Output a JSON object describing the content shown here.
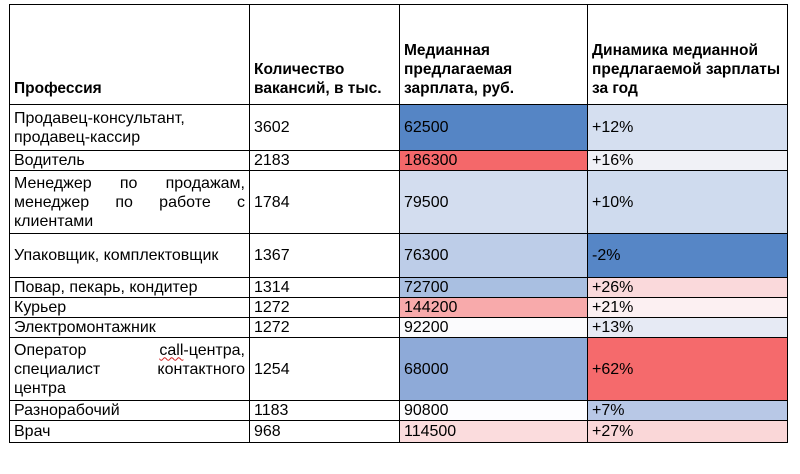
{
  "table": {
    "headers": {
      "profession": "Профессия",
      "vacancies": "Количество вакансий, в тыс.",
      "salary": "Медианная предлагаемая зарплата, руб.",
      "dynamics": "Динамика медианной предлагаемой зарплаты за год"
    },
    "rows": [
      {
        "profession": "Продавец-консультант, продавец-кассир",
        "vacancies": "3602",
        "salary": "62500",
        "dynamics": "+12%",
        "salary_color": "#5585c5",
        "dynamics_color": "#d5dff0"
      },
      {
        "profession": "Водитель",
        "vacancies": "2183",
        "salary": "186300",
        "dynamics": "+16%",
        "salary_color": "#f4686a",
        "dynamics_color": "#f0f1f6"
      },
      {
        "profession": "Менеджер по продажам, менеджер по работе с клиентами",
        "vacancies": "1784",
        "salary": "79500",
        "dynamics": "+10%",
        "salary_color": "#d3ddef",
        "dynamics_color": "#cfdbee"
      },
      {
        "profession": "Упаковщик, комплектовщик",
        "vacancies": "1367",
        "salary": "76300",
        "dynamics": "-2%",
        "salary_color": "#bdcde8",
        "dynamics_color": "#5686c6"
      },
      {
        "profession": "Повар, пекарь, кондитер",
        "vacancies": "1314",
        "salary": "72700",
        "dynamics": "+26%",
        "salary_color": "#a9bfe1",
        "dynamics_color": "#fad9db"
      },
      {
        "profession": "Курьер",
        "vacancies": "1272",
        "salary": "144200",
        "dynamics": "+21%",
        "salary_color": "#f8aaab",
        "dynamics_color": "#fcf0f2"
      },
      {
        "profession": "Электромонтажник",
        "vacancies": "1272",
        "salary": "92200",
        "dynamics": "+13%",
        "salary_color": "#fbfbfd",
        "dynamics_color": "#e6eaf4"
      },
      {
        "profession": "Оператор call-центра, специалист контактного центра",
        "vacancies": "1254",
        "salary": "68000",
        "dynamics": "+62%",
        "salary_color": "#8eaad8",
        "dynamics_color": "#f56a6c"
      },
      {
        "profession": "Разнорабочий",
        "vacancies": "1183",
        "salary": "90800",
        "dynamics": "+7%",
        "salary_color": "#fdfdff",
        "dynamics_color": "#b8c8e6"
      },
      {
        "profession": "Врач",
        "vacancies": "968",
        "salary": "114500",
        "dynamics": "+27%",
        "salary_color": "#fbdcdd",
        "dynamics_color": "#fad7d8"
      }
    ]
  }
}
